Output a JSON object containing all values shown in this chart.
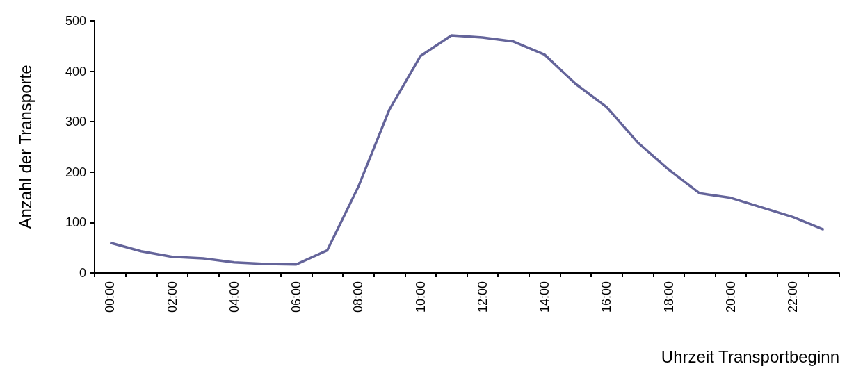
{
  "chart_data": {
    "type": "line",
    "xlabel": "Uhrzeit Transportbeginn",
    "ylabel": "Anzahl der Transporte",
    "categories": [
      "00:00",
      null,
      "02:00",
      null,
      "04:00",
      null,
      "06:00",
      null,
      "08:00",
      null,
      "10:00",
      null,
      "12:00",
      null,
      "14:00",
      null,
      "16:00",
      null,
      "18:00",
      null,
      "20:00",
      null,
      "22:00",
      null
    ],
    "series": [
      {
        "color": "#64649a",
        "values": [
          60,
          43,
          32,
          29,
          21,
          18,
          17,
          45,
          171,
          324,
          430,
          471,
          467,
          459,
          433,
          375,
          329,
          259,
          205,
          158,
          149,
          130,
          111,
          86
        ]
      }
    ],
    "ylim": [
      0,
      500
    ],
    "yticks": [
      0,
      100,
      200,
      300,
      400,
      500
    ],
    "grid": false,
    "marker": "none",
    "line_style": "solid"
  }
}
